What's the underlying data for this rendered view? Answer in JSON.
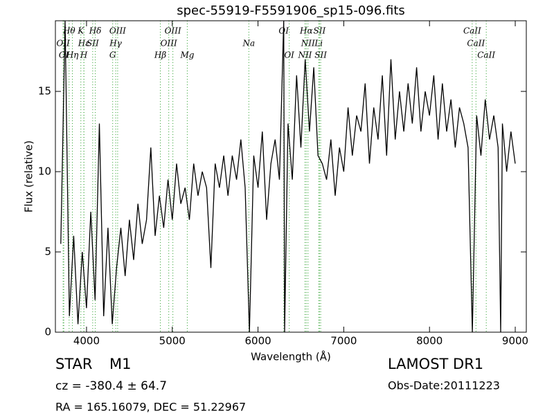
{
  "chart_data": {
    "type": "line",
    "title": "spec-55919-F5591906_sp15-096.fits",
    "x_label": "Wavelength (Å)",
    "y_label": "Flux (relative)",
    "xlim": [
      3637,
      9129
    ],
    "ylim": [
      0,
      19.4
    ],
    "xticks": [
      4000,
      5000,
      6000,
      7000,
      8000,
      9000
    ],
    "yticks": [
      0,
      5,
      10,
      15
    ],
    "x": [
      3700,
      3750,
      3800,
      3850,
      3900,
      3950,
      4000,
      4050,
      4100,
      4150,
      4200,
      4250,
      4300,
      4350,
      4400,
      4450,
      4500,
      4550,
      4600,
      4650,
      4700,
      4750,
      4800,
      4850,
      4900,
      4950,
      5000,
      5050,
      5100,
      5150,
      5200,
      5250,
      5300,
      5350,
      5400,
      5450,
      5500,
      5550,
      5600,
      5650,
      5700,
      5750,
      5800,
      5850,
      5900,
      5950,
      6000,
      6050,
      6100,
      6150,
      6200,
      6250,
      6300,
      6310,
      6350,
      6400,
      6450,
      6500,
      6550,
      6600,
      6650,
      6700,
      6750,
      6800,
      6850,
      6900,
      6950,
      7000,
      7050,
      7100,
      7150,
      7200,
      7250,
      7300,
      7350,
      7400,
      7450,
      7500,
      7550,
      7600,
      7650,
      7700,
      7750,
      7800,
      7850,
      7900,
      7950,
      8000,
      8050,
      8100,
      8150,
      8200,
      8250,
      8300,
      8350,
      8400,
      8450,
      8500,
      8550,
      8600,
      8650,
      8700,
      8750,
      8800,
      8830,
      8850,
      8900,
      8950,
      9000
    ],
    "series": [
      {
        "color": "#000000",
        "values": [
          5.5,
          19.4,
          1.0,
          6.0,
          0.5,
          5.0,
          1.5,
          7.5,
          2.0,
          13.0,
          1.0,
          6.5,
          0.5,
          4.0,
          6.5,
          3.5,
          7.0,
          4.5,
          8.0,
          5.5,
          7.0,
          11.5,
          6.0,
          8.5,
          6.5,
          9.5,
          7.0,
          10.5,
          8.0,
          9.0,
          7.0,
          10.5,
          8.5,
          10.0,
          9.0,
          4.0,
          10.5,
          9.0,
          11.0,
          8.5,
          11.0,
          9.5,
          12.0,
          9.0,
          0.0,
          11.0,
          9.0,
          12.5,
          7.0,
          10.5,
          12.0,
          9.5,
          19.4,
          0.0,
          13.0,
          9.5,
          16.0,
          11.5,
          17.0,
          12.5,
          16.5,
          11.0,
          10.5,
          9.5,
          12.0,
          8.5,
          11.5,
          10.0,
          14.0,
          11.0,
          13.5,
          12.5,
          15.5,
          10.5,
          14.0,
          12.0,
          16.0,
          11.0,
          17.0,
          12.0,
          15.0,
          12.5,
          15.5,
          13.0,
          16.5,
          12.5,
          15.0,
          13.5,
          16.0,
          12.0,
          15.5,
          12.5,
          14.5,
          11.5,
          14.0,
          13.0,
          11.5,
          0.0,
          13.5,
          11.0,
          14.5,
          12.0,
          13.5,
          11.5,
          0.0,
          13.0,
          10.0,
          12.5,
          10.5
        ]
      }
    ],
    "line_color": "#2ca02c",
    "lines": [
      {
        "label": "Hθ",
        "x": 3797
      },
      {
        "label": "K",
        "x": 3934
      },
      {
        "label": "Hδ",
        "x": 4102
      },
      {
        "label": "OIII",
        "x": 4363
      },
      {
        "label": "OIII",
        "x": 5007
      },
      {
        "label": "OI",
        "x": 6300
      },
      {
        "label": "Hα",
        "x": 6563
      },
      {
        "label": "SII",
        "x": 6717
      },
      {
        "label": "CaII",
        "x": 8498
      },
      {
        "label": "OII",
        "x": 3727
      },
      {
        "label": "Hε",
        "x": 3970
      },
      {
        "label": "SII",
        "x": 4072
      },
      {
        "label": "Hγ",
        "x": 4340
      },
      {
        "label": "OIII",
        "x": 4959
      },
      {
        "label": "Na",
        "x": 5893
      },
      {
        "label": "NII",
        "x": 6583
      },
      {
        "label": "Li",
        "x": 6708
      },
      {
        "label": "CaII",
        "x": 8542
      },
      {
        "label": "OI",
        "x": 3735
      },
      {
        "label": "Hη",
        "x": 3835
      },
      {
        "label": "H",
        "x": 3969
      },
      {
        "label": "G",
        "x": 4305
      },
      {
        "label": "Hβ",
        "x": 4861
      },
      {
        "label": "Mg",
        "x": 5175
      },
      {
        "label": "OI",
        "x": 6364
      },
      {
        "label": "NII",
        "x": 6548
      },
      {
        "label": "SII",
        "x": 6731
      },
      {
        "label": "CaII",
        "x": 8662
      }
    ]
  },
  "info": {
    "class": "STAR",
    "subclass": "M1",
    "cz": "cz = -380.4 ± 64.7",
    "coords": "RA = 165.16079, DEC = 51.22967",
    "survey": "LAMOST DR1",
    "obs_date": "Obs-Date:20111223"
  }
}
